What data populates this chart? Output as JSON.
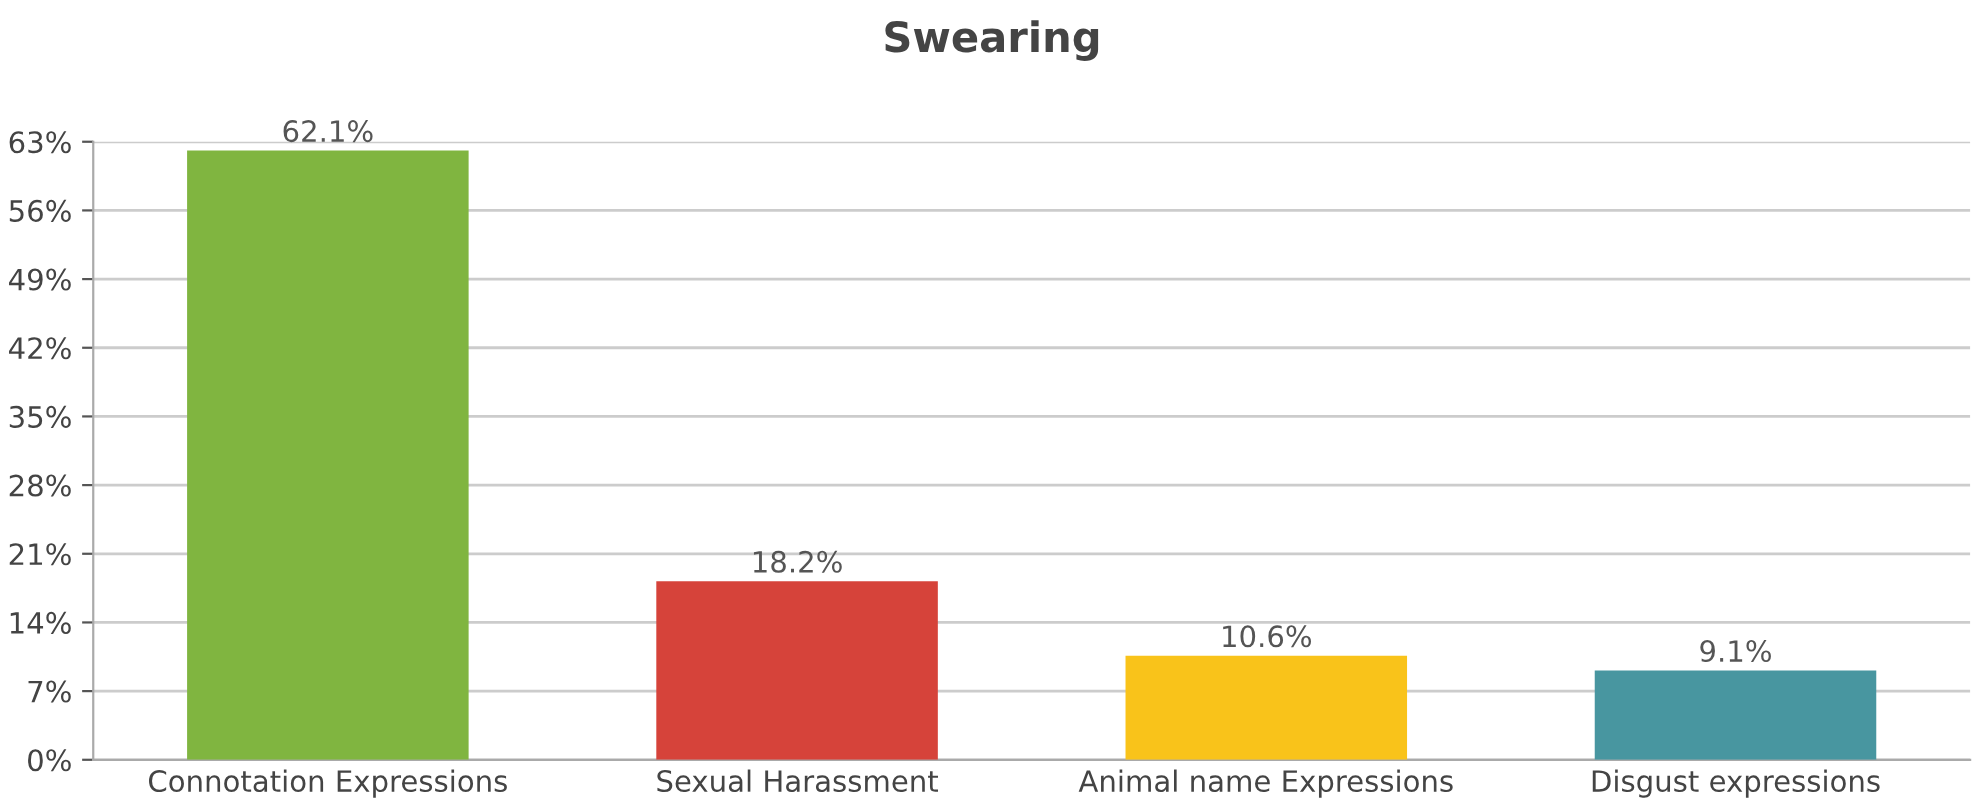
{
  "chart_data": {
    "type": "bar",
    "title": "Swearing",
    "categories": [
      "Connotation Expressions",
      "Sexual Harassment",
      "Animal name Expressions",
      "Disgust expressions"
    ],
    "values": [
      62.1,
      18.2,
      10.6,
      9.1
    ],
    "colors": [
      "#80b540",
      "#d6433a",
      "#f9c31a",
      "#4896a0"
    ],
    "value_labels": [
      "62.1%",
      "18.2%",
      "10.6%",
      "9.1%"
    ],
    "ylim": [
      0,
      63
    ],
    "yticks": [
      {
        "value": 0,
        "label": "0%"
      },
      {
        "value": 7,
        "label": "7%"
      },
      {
        "value": 14,
        "label": "14%"
      },
      {
        "value": 21,
        "label": "21%"
      },
      {
        "value": 28,
        "label": "28%"
      },
      {
        "value": 35,
        "label": "35%"
      },
      {
        "value": 42,
        "label": "42%"
      },
      {
        "value": 49,
        "label": "49%"
      },
      {
        "value": 56,
        "label": "56%"
      },
      {
        "value": 63,
        "label": "63%"
      }
    ],
    "grid": "y"
  }
}
